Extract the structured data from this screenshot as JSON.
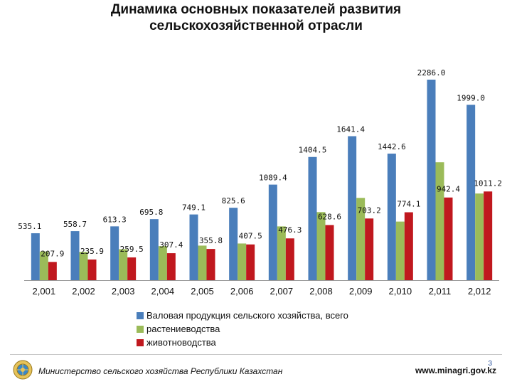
{
  "title": {
    "line1": "Динамика основных показателей развития",
    "line2": "сельскохозяйственной отрасли"
  },
  "chart_data": {
    "type": "bar",
    "categories": [
      "2,001",
      "2,002",
      "2,003",
      "2,004",
      "2,005",
      "2,006",
      "2,007",
      "2,008",
      "2,009",
      "2,010",
      "2,011",
      "2,012"
    ],
    "series": [
      {
        "name": "Валовая продукция сельского хозяйства, всего",
        "color": "#4a7ebb",
        "values": [
          535.1,
          558.7,
          613.3,
          695.8,
          749.1,
          825.6,
          1089.4,
          1404.5,
          1641.4,
          1442.6,
          2286.0,
          1999.0
        ]
      },
      {
        "name": "растениеводства",
        "color": "#9bbb59",
        "values": [
          327.0,
          322.0,
          353.0,
          388.0,
          394.0,
          418.0,
          613.0,
          776.0,
          938.0,
          668.0,
          1344.0,
          988.0
        ]
      },
      {
        "name": "животноводства",
        "color": "#c0181e",
        "values": [
          207.9,
          235.9,
          259.5,
          307.4,
          355.8,
          407.5,
          476.3,
          628.6,
          703.2,
          774.1,
          942.4,
          1011.2
        ]
      }
    ],
    "data_labels": {
      "series_0": [
        "535.1",
        "558.7",
        "613.3",
        "695.8",
        "749.1",
        "825.6",
        "1089.4",
        "1404.5",
        "1641.4",
        "1442.6",
        "2286.0",
        "1999.0"
      ],
      "series_2": [
        "207.9",
        "235.9",
        "259.5",
        "307.4",
        "355.8",
        "407.5",
        "476.3",
        "628.6",
        "703.2",
        "774.1",
        "942.4",
        "1011.2"
      ]
    },
    "ylim": [
      0,
      2350
    ],
    "grid": false,
    "legend_position": "bottom"
  },
  "footer": {
    "ministry": "Министерство сельского хозяйства Республики Казахстан",
    "site": "www.minagri.gov.kz",
    "page": "3"
  },
  "icons": {
    "emblem": "kazakhstan-emblem-icon"
  }
}
